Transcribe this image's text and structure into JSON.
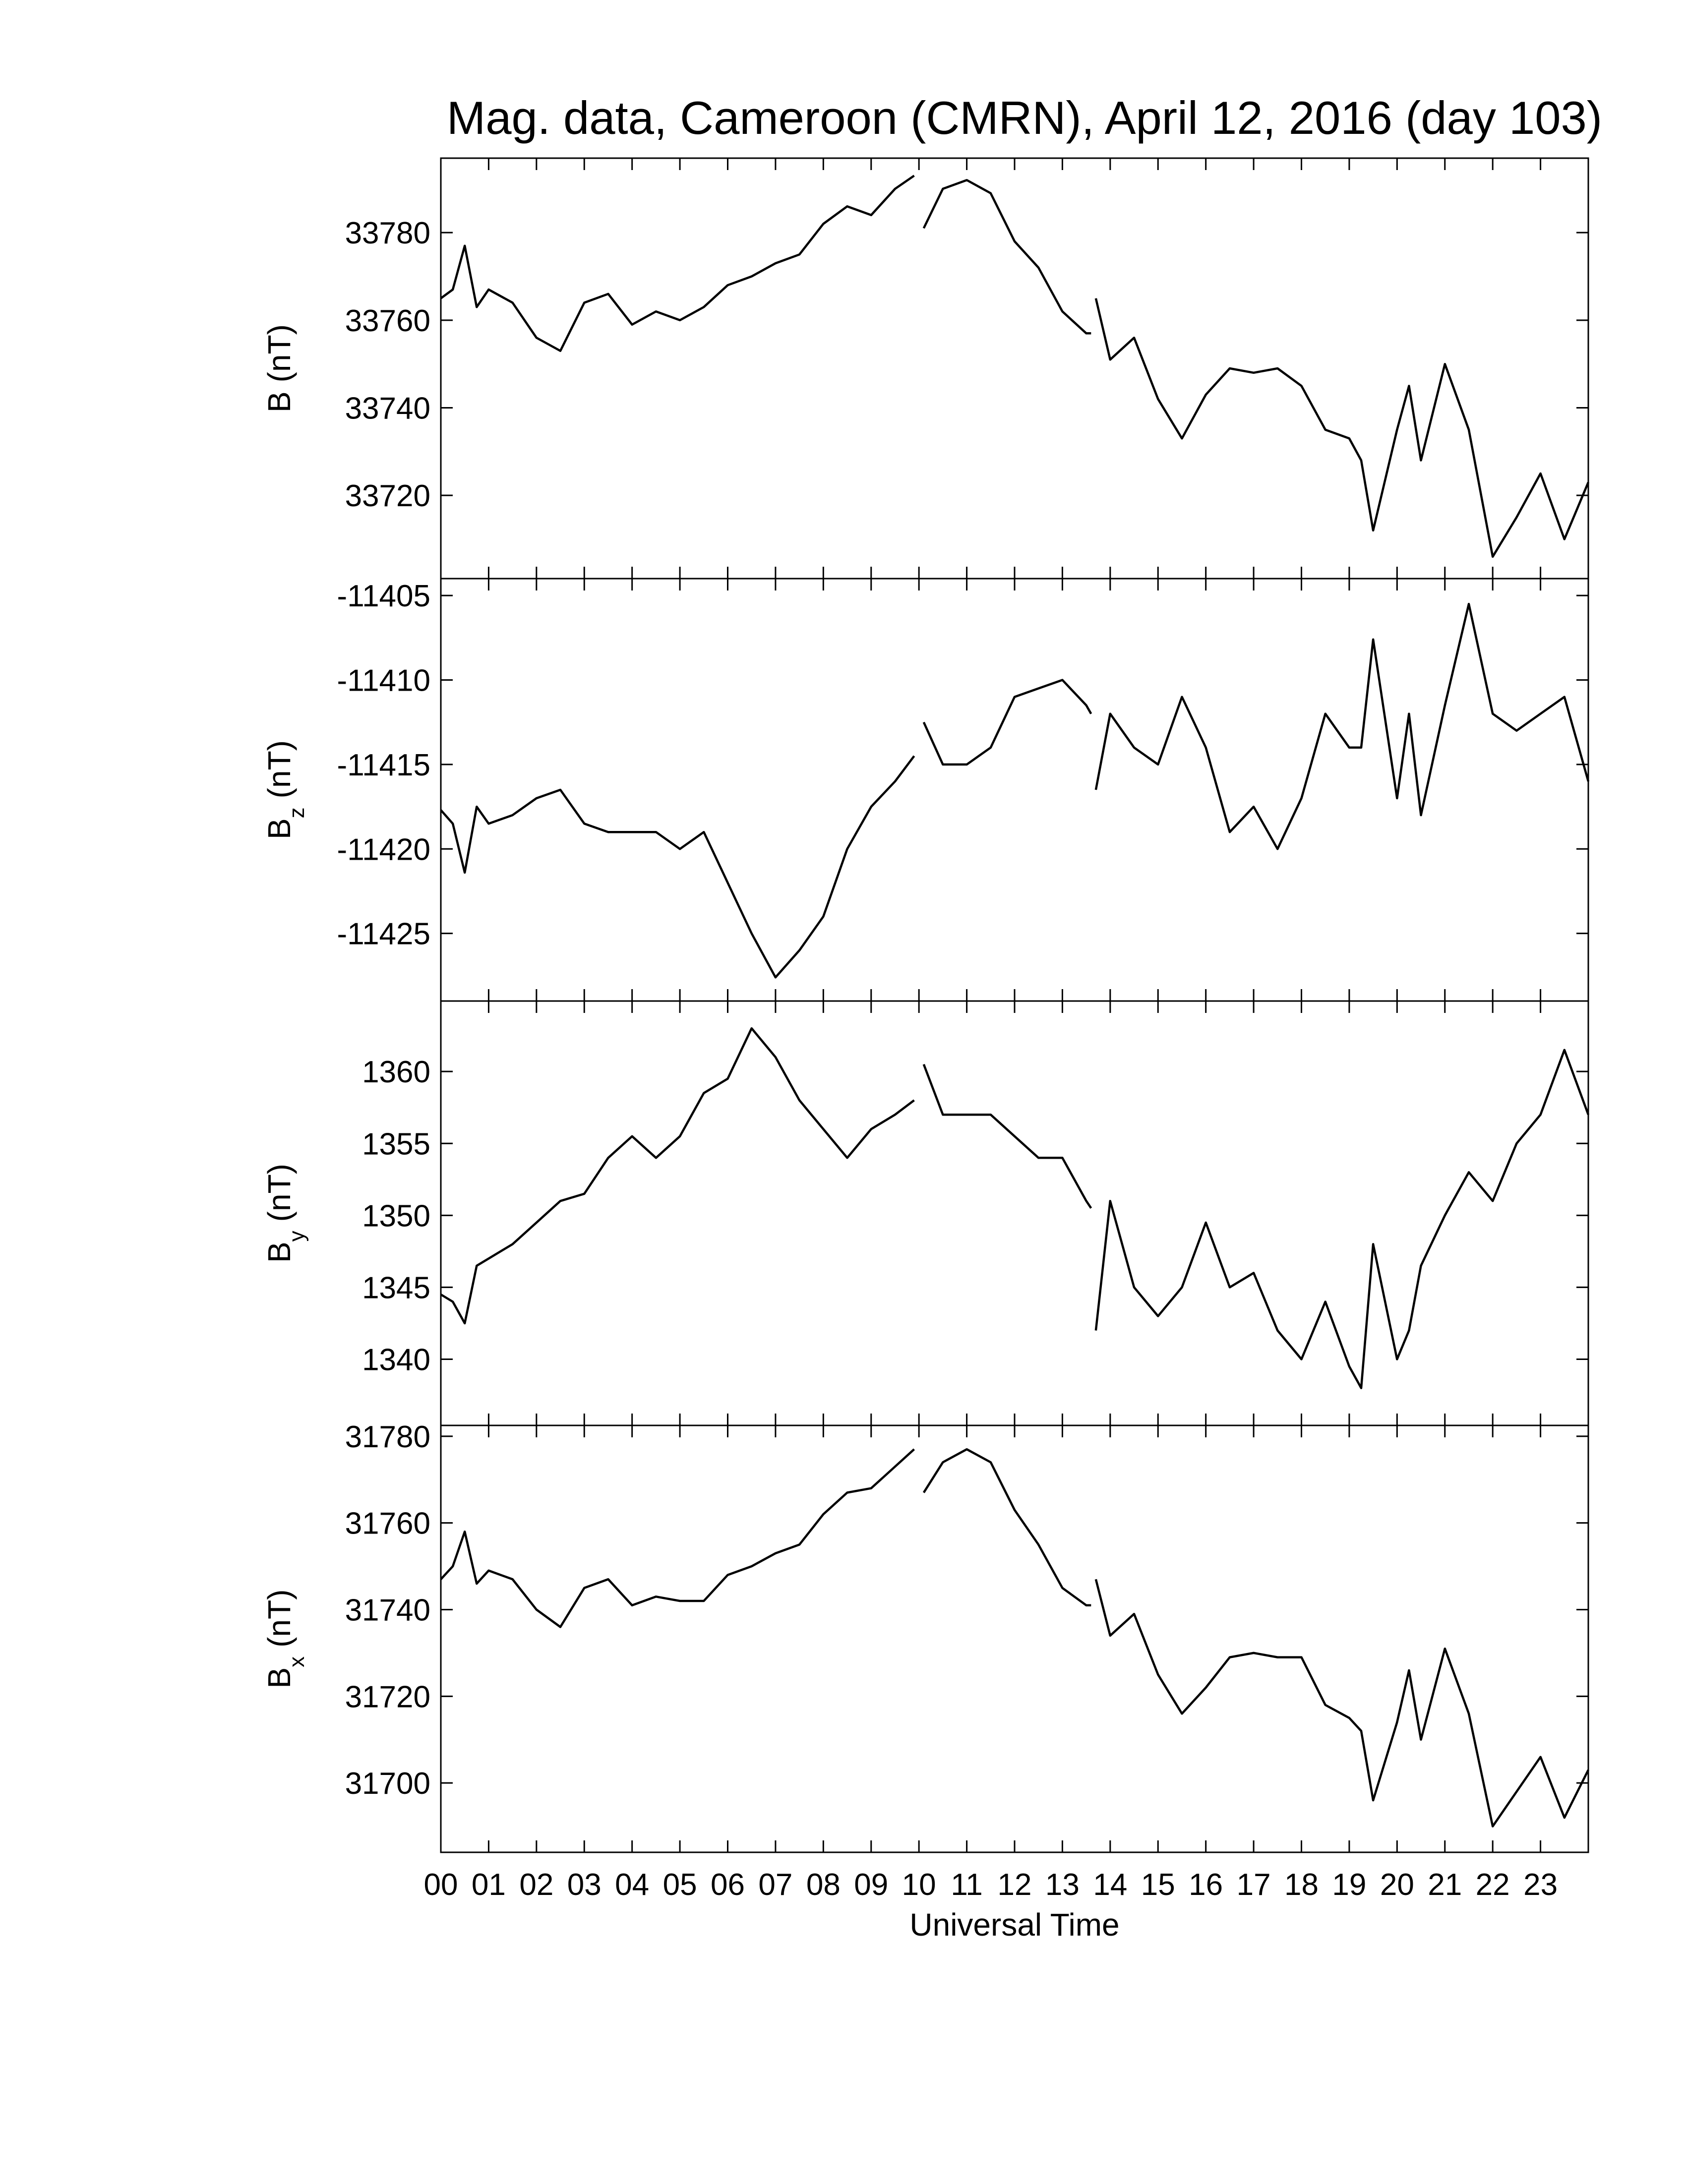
{
  "chart_data": [
    {
      "type": "line",
      "title": "Mag. data, Cameroon (CMRN), April 12, 2016 (day 103)",
      "ylabel": "B",
      "ylabel_unit": "(nT)",
      "xlim": [
        0,
        24
      ],
      "ylim": [
        33701,
        33797
      ],
      "yticks": [
        33720,
        33740,
        33760,
        33780
      ],
      "x": [
        0,
        0.25,
        0.5,
        0.75,
        1,
        1.5,
        2,
        2.5,
        3,
        3.5,
        4,
        4.5,
        5,
        5.5,
        6,
        6.5,
        7,
        7.5,
        8,
        8.5,
        9,
        9.5,
        9.9,
        10,
        10.1,
        10.5,
        11,
        11.5,
        12,
        12.5,
        13,
        13.5,
        13.6,
        13.65,
        13.7,
        14,
        14.5,
        15,
        15.5,
        16,
        16.5,
        17,
        17.5,
        18,
        18.5,
        19,
        19.25,
        19.5,
        20,
        20.25,
        20.5,
        21,
        21.5,
        22,
        22.5,
        23,
        23.5,
        24
      ],
      "series": [
        {
          "color": "#000000",
          "values": [
            33765,
            33767,
            33777,
            33763,
            33767,
            33764,
            33756,
            33753,
            33764,
            33766,
            33759,
            33762,
            33760,
            33763,
            33768,
            33770,
            33773,
            33775,
            33782,
            33786,
            33784,
            33790,
            33793,
            null,
            33781,
            33790,
            33792,
            33789,
            33778,
            33772,
            33762,
            33757,
            33757,
            null,
            33765,
            33751,
            33756,
            33742,
            33733,
            33743,
            33749,
            33748,
            33749,
            33745,
            33735,
            33733,
            33728,
            33712,
            33735,
            33745,
            33728,
            33750,
            33735,
            33706,
            33715,
            33725,
            33710,
            33723
          ]
        }
      ]
    },
    {
      "type": "line",
      "ylabel": "B",
      "ylabel_subscript": "z",
      "ylabel_unit": "(nT)",
      "xlim": [
        0,
        24
      ],
      "ylim": [
        -11429,
        -11404
      ],
      "yticks": [
        -11425,
        -11420,
        -11415,
        -11410,
        -11405
      ],
      "x": [
        0,
        0.25,
        0.5,
        0.75,
        1,
        1.5,
        2,
        2.5,
        3,
        3.5,
        4,
        4.5,
        5,
        5.5,
        6,
        6.5,
        7,
        7.5,
        8,
        8.5,
        9,
        9.5,
        9.9,
        10,
        10.1,
        10.5,
        11,
        11.5,
        12,
        12.5,
        13,
        13.5,
        13.6,
        13.65,
        13.7,
        14,
        14.5,
        15,
        15.5,
        16,
        16.5,
        17,
        17.5,
        18,
        18.5,
        19,
        19.25,
        19.5,
        20,
        20.25,
        20.5,
        21,
        21.5,
        22,
        22.5,
        23,
        23.5,
        24
      ],
      "series": [
        {
          "color": "#000000",
          "values": [
            -11417.7,
            -11418.5,
            -11421.4,
            -11417.5,
            -11418.5,
            -11418,
            -11417,
            -11416.5,
            -11418.5,
            -11419,
            -11419,
            -11419,
            -11420,
            -11419,
            -11422,
            -11425,
            -11427.6,
            -11426,
            -11424,
            -11420,
            -11417.5,
            -11416,
            -11414.5,
            null,
            -11412.5,
            -11415,
            -11415,
            -11414,
            -11411,
            -11410.5,
            -11410,
            -11411.5,
            -11412,
            null,
            -11416.5,
            -11412,
            -11414,
            -11415,
            -11411,
            -11414,
            -11419,
            -11417.5,
            -11420,
            -11417,
            -11412,
            -11414,
            -11414,
            -11407.6,
            -11417,
            -11412,
            -11418,
            -11411.5,
            -11405.5,
            -11412,
            -11413,
            -11412,
            -11411,
            -11416
          ]
        }
      ]
    },
    {
      "type": "line",
      "ylabel": "B",
      "ylabel_subscript": "y",
      "ylabel_unit": "(nT)",
      "xlim": [
        0,
        24
      ],
      "ylim": [
        1335.4,
        1364.9
      ],
      "yticks": [
        1340,
        1345,
        1350,
        1355,
        1360
      ],
      "x": [
        0,
        0.25,
        0.5,
        0.75,
        1,
        1.5,
        2,
        2.5,
        3,
        3.5,
        4,
        4.5,
        5,
        5.5,
        6,
        6.5,
        7,
        7.5,
        8,
        8.5,
        9,
        9.5,
        9.9,
        10,
        10.1,
        10.5,
        11,
        11.5,
        12,
        12.5,
        13,
        13.5,
        13.6,
        13.65,
        13.7,
        14,
        14.5,
        15,
        15.5,
        16,
        16.5,
        17,
        17.5,
        18,
        18.5,
        19,
        19.25,
        19.5,
        20,
        20.25,
        20.5,
        21,
        21.5,
        22,
        22.5,
        23,
        23.5,
        24
      ],
      "series": [
        {
          "color": "#000000",
          "values": [
            1344.5,
            1344,
            1342.5,
            1346.5,
            1347,
            1348,
            1349.5,
            1351,
            1351.5,
            1354,
            1355.5,
            1354,
            1355.5,
            1358.5,
            1359.5,
            1363,
            1361,
            1358,
            1356,
            1354,
            1356,
            1357,
            1358,
            null,
            1360.5,
            1357,
            1357,
            1357,
            1355.5,
            1354,
            1354,
            1351,
            1350.5,
            null,
            1342,
            1351,
            1345,
            1343,
            1345,
            1349.5,
            1345,
            1346,
            1342,
            1340,
            1344,
            1339.5,
            1338,
            1348,
            1340,
            1342,
            1346.5,
            1350,
            1353,
            1351,
            1355,
            1357,
            1361.5,
            1357
          ]
        }
      ]
    },
    {
      "type": "line",
      "ylabel": "B",
      "ylabel_subscript": "x",
      "ylabel_unit": "(nT)",
      "xlabel": "Universal Time",
      "xlim": [
        0,
        24
      ],
      "ylim": [
        31684,
        31782.5
      ],
      "yticks": [
        31700,
        31720,
        31740,
        31760,
        31780
      ],
      "xticks": [
        {
          "value": 0,
          "label": "00"
        },
        {
          "value": 1,
          "label": "01"
        },
        {
          "value": 2,
          "label": "02"
        },
        {
          "value": 3,
          "label": "03"
        },
        {
          "value": 4,
          "label": "04"
        },
        {
          "value": 5,
          "label": "05"
        },
        {
          "value": 6,
          "label": "06"
        },
        {
          "value": 7,
          "label": "07"
        },
        {
          "value": 8,
          "label": "08"
        },
        {
          "value": 9,
          "label": "09"
        },
        10,
        11,
        12,
        13,
        14,
        15,
        16,
        17,
        18,
        19,
        20,
        21,
        22,
        23
      ],
      "x": [
        0,
        0.25,
        0.5,
        0.75,
        1,
        1.5,
        2,
        2.5,
        3,
        3.5,
        4,
        4.5,
        5,
        5.5,
        6,
        6.5,
        7,
        7.5,
        8,
        8.5,
        9,
        9.5,
        9.9,
        10,
        10.1,
        10.5,
        11,
        11.5,
        12,
        12.5,
        13,
        13.5,
        13.6,
        13.65,
        13.7,
        14,
        14.5,
        15,
        15.5,
        16,
        16.5,
        17,
        17.5,
        18,
        18.5,
        19,
        19.25,
        19.5,
        20,
        20.25,
        20.5,
        21,
        21.5,
        22,
        22.5,
        23,
        23.5,
        24
      ],
      "series": [
        {
          "color": "#000000",
          "values": [
            31747,
            31750,
            31758,
            31746,
            31749,
            31747,
            31740,
            31736,
            31745,
            31747,
            31741,
            31743,
            31742,
            31742,
            31748,
            31750,
            31753,
            31755,
            31762,
            31767,
            31768,
            31773,
            31777,
            null,
            31767,
            31774,
            31777,
            31774,
            31763,
            31755,
            31745,
            31741,
            31741,
            null,
            31747,
            31734,
            31739,
            31725,
            31716,
            31722,
            31729,
            31730,
            31729,
            31729,
            31718,
            31715,
            31712,
            31696,
            31714,
            31726,
            31710,
            31731,
            31716,
            31690,
            31698,
            31706,
            31692,
            31703
          ]
        }
      ]
    }
  ]
}
